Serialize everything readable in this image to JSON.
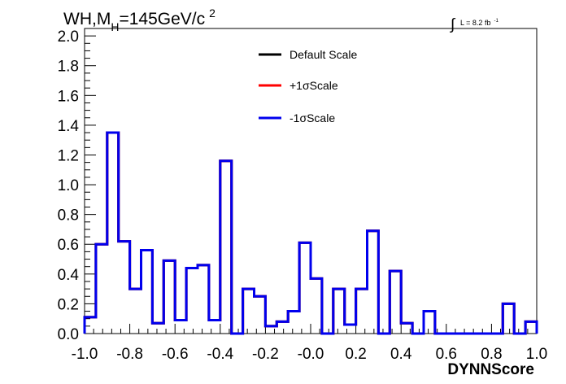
{
  "chart_data": {
    "type": "histogram",
    "title": {
      "main": "WH,M",
      "subscript": "H",
      "rest": "=145GeV/c",
      "superscript": "2"
    },
    "lumi": {
      "symbol": "∫",
      "text": "L = 8.2 fb",
      "superscript": "-1"
    },
    "xlabel": "DYNNScore",
    "ylabel": "",
    "xlim": [
      -1.0,
      1.0
    ],
    "ylim": [
      0.0,
      2.05
    ],
    "x_ticks": [
      -1.0,
      -0.8,
      -0.6,
      -0.4,
      -0.2,
      0.0,
      0.2,
      0.4,
      0.6,
      0.8,
      1.0
    ],
    "x_tick_labels": [
      "-1.0",
      "-0.8",
      "-0.6",
      "-0.4",
      "-0.2",
      "-0.0",
      "0.2",
      "0.4",
      "0.6",
      "0.8",
      "1.0"
    ],
    "y_ticks": [
      0.0,
      0.2,
      0.4,
      0.6,
      0.8,
      1.0,
      1.2,
      1.4,
      1.6,
      1.8,
      2.0
    ],
    "y_tick_labels": [
      "0.0",
      "0.2",
      "0.4",
      "0.6",
      "0.8",
      "1.0",
      "1.2",
      "1.4",
      "1.6",
      "1.8",
      "2.0"
    ],
    "bin_edges_start": -1.0,
    "bin_width": 0.05,
    "legend_placement": "top-center",
    "series": [
      {
        "name": "Default Scale",
        "color": "#000000",
        "values": [
          0.11,
          0.6,
          1.35,
          0.62,
          0.3,
          0.56,
          0.07,
          0.49,
          0.09,
          0.44,
          0.46,
          0.09,
          1.16,
          0.0,
          0.3,
          0.25,
          0.05,
          0.08,
          0.15,
          0.61,
          0.37,
          0.0,
          0.3,
          0.06,
          0.3,
          0.69,
          0.0,
          0.42,
          0.07,
          0.0,
          0.15,
          0.0,
          0.0,
          0.0,
          0.0,
          0.0,
          0.0,
          0.2,
          0.0,
          0.08
        ]
      },
      {
        "name": "+1σScale",
        "color": "#ff0000",
        "values": [
          0.11,
          0.6,
          1.35,
          0.62,
          0.3,
          0.56,
          0.07,
          0.49,
          0.09,
          0.44,
          0.46,
          0.09,
          1.16,
          0.0,
          0.3,
          0.25,
          0.05,
          0.08,
          0.15,
          0.61,
          0.37,
          0.0,
          0.3,
          0.06,
          0.3,
          0.69,
          0.0,
          0.42,
          0.07,
          0.0,
          0.15,
          0.0,
          0.0,
          0.0,
          0.0,
          0.0,
          0.0,
          0.2,
          0.0,
          0.08
        ]
      },
      {
        "name": "-1σScale",
        "color": "#0000ee",
        "values": [
          0.11,
          0.6,
          1.35,
          0.62,
          0.3,
          0.56,
          0.07,
          0.49,
          0.09,
          0.44,
          0.46,
          0.09,
          1.16,
          0.0,
          0.3,
          0.25,
          0.05,
          0.08,
          0.15,
          0.61,
          0.37,
          0.0,
          0.3,
          0.06,
          0.3,
          0.69,
          0.0,
          0.42,
          0.07,
          0.0,
          0.15,
          0.0,
          0.0,
          0.0,
          0.0,
          0.0,
          0.0,
          0.2,
          0.0,
          0.08
        ]
      }
    ]
  }
}
